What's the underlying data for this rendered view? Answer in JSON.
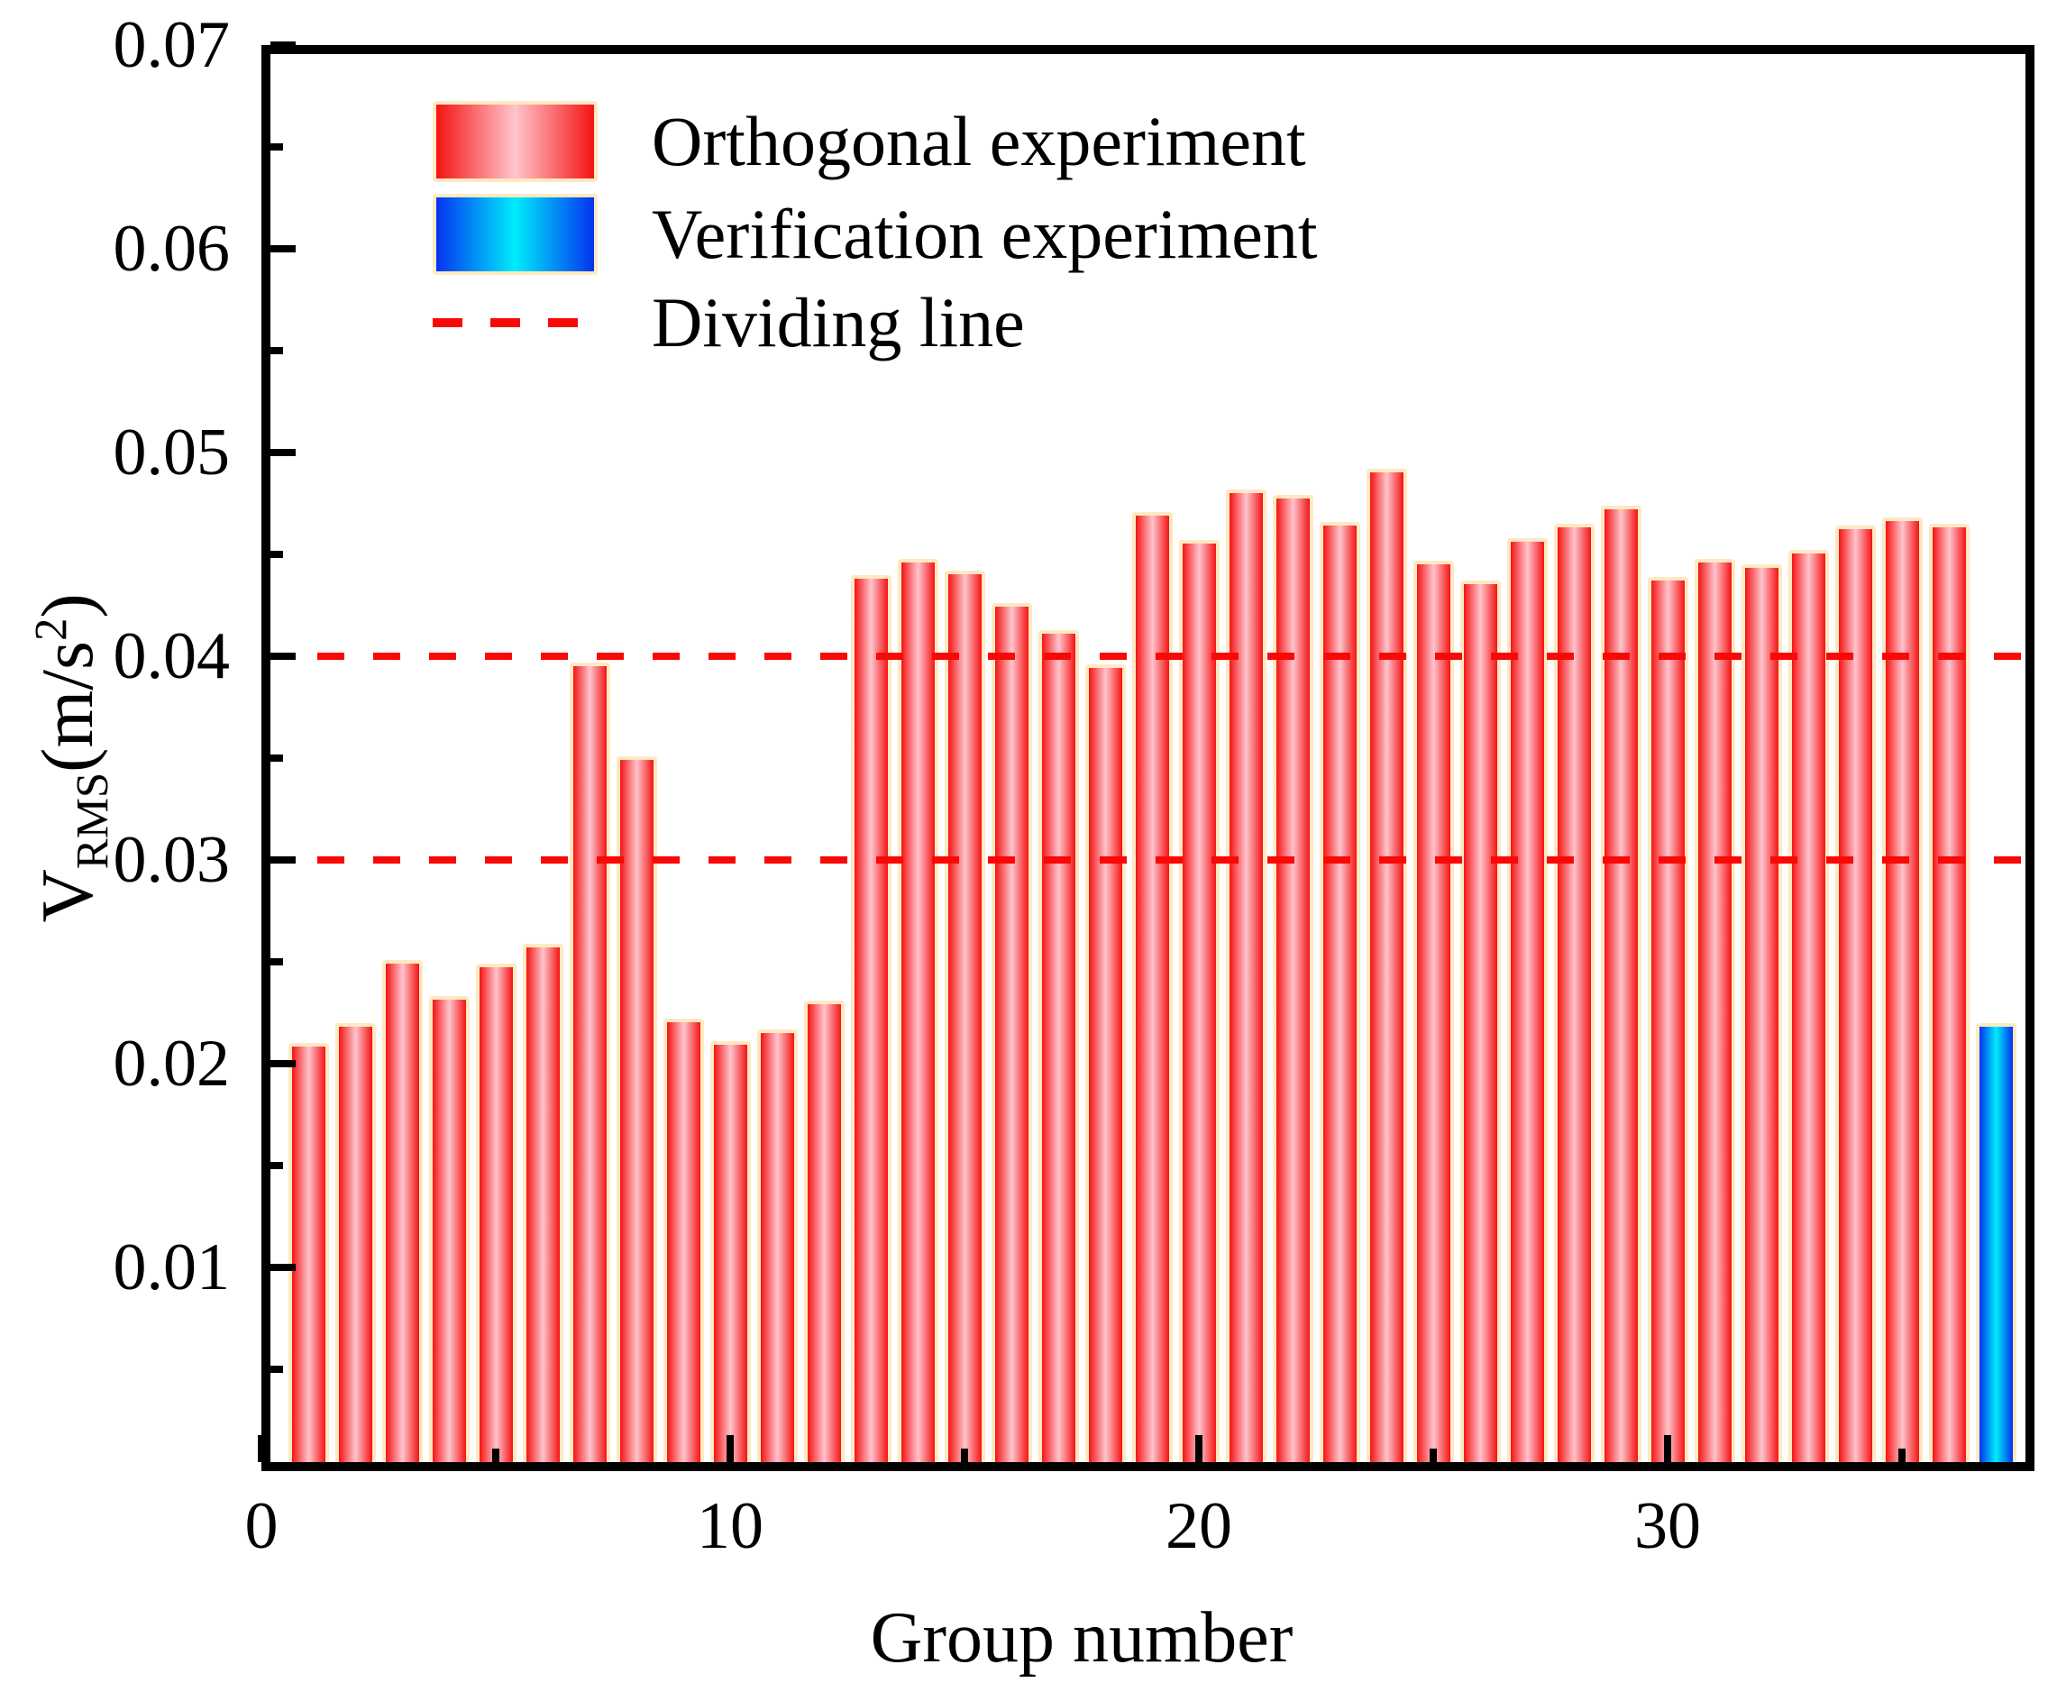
{
  "chart_data": {
    "type": "bar",
    "title": "",
    "xlabel": "Group number",
    "ylabel": {
      "var": "V",
      "sub": "RMS",
      "open": "(m/s",
      "sup": "2",
      "close": ")"
    },
    "xlim": [
      0,
      38
    ],
    "ylim": [
      0,
      0.07
    ],
    "grid": "off",
    "legend_position": "upper-left-inside",
    "x_major_ticks": [
      {
        "value": 0,
        "label": "0"
      },
      {
        "value": 10,
        "label": "10"
      },
      {
        "value": 20,
        "label": "20"
      },
      {
        "value": 30,
        "label": "30"
      }
    ],
    "x_minor_ticks": [
      5,
      15,
      25,
      35
    ],
    "y_major_ticks": [
      {
        "value": 0.01,
        "label": "0.01"
      },
      {
        "value": 0.02,
        "label": "0.02"
      },
      {
        "value": 0.03,
        "label": "0.03"
      },
      {
        "value": 0.04,
        "label": "0.04"
      },
      {
        "value": 0.05,
        "label": "0.05"
      },
      {
        "value": 0.06,
        "label": "0.06"
      },
      {
        "value": 0.07,
        "label": "0.07"
      }
    ],
    "y_minor_ticks": [
      0.005,
      0.015,
      0.025,
      0.035,
      0.045,
      0.055,
      0.065
    ],
    "series": [
      {
        "name": "Orthogonal experiment",
        "type": "bar",
        "color_edge": "#f41414",
        "color_center": "#ffc4cd",
        "groups": [
          1,
          2,
          3,
          4,
          5,
          6,
          7,
          8,
          9,
          10,
          11,
          12,
          13,
          14,
          15,
          16,
          17,
          18,
          19,
          20,
          21,
          22,
          23,
          24,
          25,
          26,
          27,
          28,
          29,
          30,
          31,
          32,
          33,
          34,
          35,
          36
        ],
        "values": [
          0.021,
          0.022,
          0.0251,
          0.0233,
          0.0249,
          0.0259,
          0.0397,
          0.0351,
          0.0222,
          0.0211,
          0.0217,
          0.0231,
          0.044,
          0.0448,
          0.0442,
          0.0426,
          0.0413,
          0.0396,
          0.0471,
          0.0457,
          0.0482,
          0.0479,
          0.0466,
          0.0492,
          0.0447,
          0.0437,
          0.0458,
          0.0465,
          0.0474,
          0.0439,
          0.0448,
          0.0445,
          0.0452,
          0.0464,
          0.0468,
          0.0465
        ]
      },
      {
        "name": "Verification experiment",
        "type": "bar",
        "color_edge": "#0433ef",
        "color_center": "#00ecfc",
        "groups": [
          37
        ],
        "values": [
          0.022
        ]
      }
    ],
    "dividing_lines": {
      "name": "Dividing line",
      "values": [
        0.03,
        0.04
      ],
      "style": "dashed"
    },
    "colors": {
      "bar_outline": "#ffe9c2",
      "dividing": "#f80806",
      "axis": "#000000",
      "background": "#ffffff"
    }
  }
}
